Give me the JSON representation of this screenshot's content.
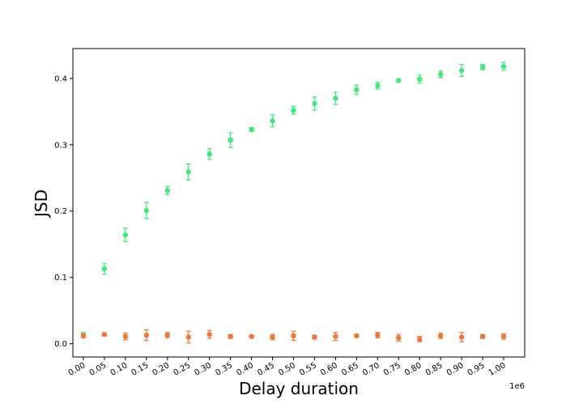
{
  "chart_data": {
    "type": "scatter",
    "title": "",
    "xlabel": "Delay duration",
    "ylabel": "JSD",
    "x_offset_label": "1e6",
    "x_tick_labels": [
      "0.00",
      "0.05",
      "0.10",
      "0.15",
      "0.20",
      "0.25",
      "0.30",
      "0.35",
      "0.40",
      "0.45",
      "0.50",
      "0.55",
      "0.60",
      "0.65",
      "0.70",
      "0.75",
      "0.80",
      "0.85",
      "0.90",
      "0.95",
      "1.00"
    ],
    "y_tick_labels": [
      "0.0",
      "0.1",
      "0.2",
      "0.3",
      "0.4"
    ],
    "xlim": [
      -0.025,
      1.05
    ],
    "ylim": [
      -0.02,
      0.445
    ],
    "grid": false,
    "series": [
      {
        "color": "#3ee87a",
        "x": [
          0.0,
          0.05,
          0.1,
          0.15,
          0.2,
          0.25,
          0.3,
          0.35,
          0.4,
          0.45,
          0.5,
          0.55,
          0.6,
          0.65,
          0.7,
          0.75,
          0.8,
          0.85,
          0.9,
          0.95,
          1.0
        ],
        "y": [
          0.013,
          0.113,
          0.164,
          0.201,
          0.231,
          0.259,
          0.286,
          0.307,
          0.323,
          0.336,
          0.352,
          0.362,
          0.37,
          0.383,
          0.389,
          0.397,
          0.399,
          0.406,
          0.412,
          0.417,
          0.418
        ],
        "err": [
          0.004,
          0.008,
          0.01,
          0.012,
          0.006,
          0.012,
          0.008,
          0.011,
          0.003,
          0.009,
          0.006,
          0.01,
          0.009,
          0.007,
          0.005,
          0.002,
          0.006,
          0.005,
          0.009,
          0.004,
          0.006
        ]
      },
      {
        "color": "#f0773a",
        "x": [
          0.0,
          0.05,
          0.1,
          0.15,
          0.2,
          0.25,
          0.3,
          0.35,
          0.4,
          0.45,
          0.5,
          0.55,
          0.6,
          0.65,
          0.7,
          0.75,
          0.8,
          0.85,
          0.9,
          0.95,
          1.0
        ],
        "y": [
          0.012,
          0.014,
          0.011,
          0.013,
          0.013,
          0.01,
          0.014,
          0.011,
          0.011,
          0.01,
          0.012,
          0.01,
          0.011,
          0.012,
          0.013,
          0.009,
          0.007,
          0.012,
          0.01,
          0.011,
          0.011
        ],
        "err": [
          0.003,
          0.002,
          0.005,
          0.008,
          0.004,
          0.009,
          0.006,
          0.003,
          0.002,
          0.004,
          0.007,
          0.003,
          0.006,
          0.002,
          0.004,
          0.005,
          0.004,
          0.004,
          0.007,
          0.003,
          0.004
        ]
      }
    ]
  }
}
